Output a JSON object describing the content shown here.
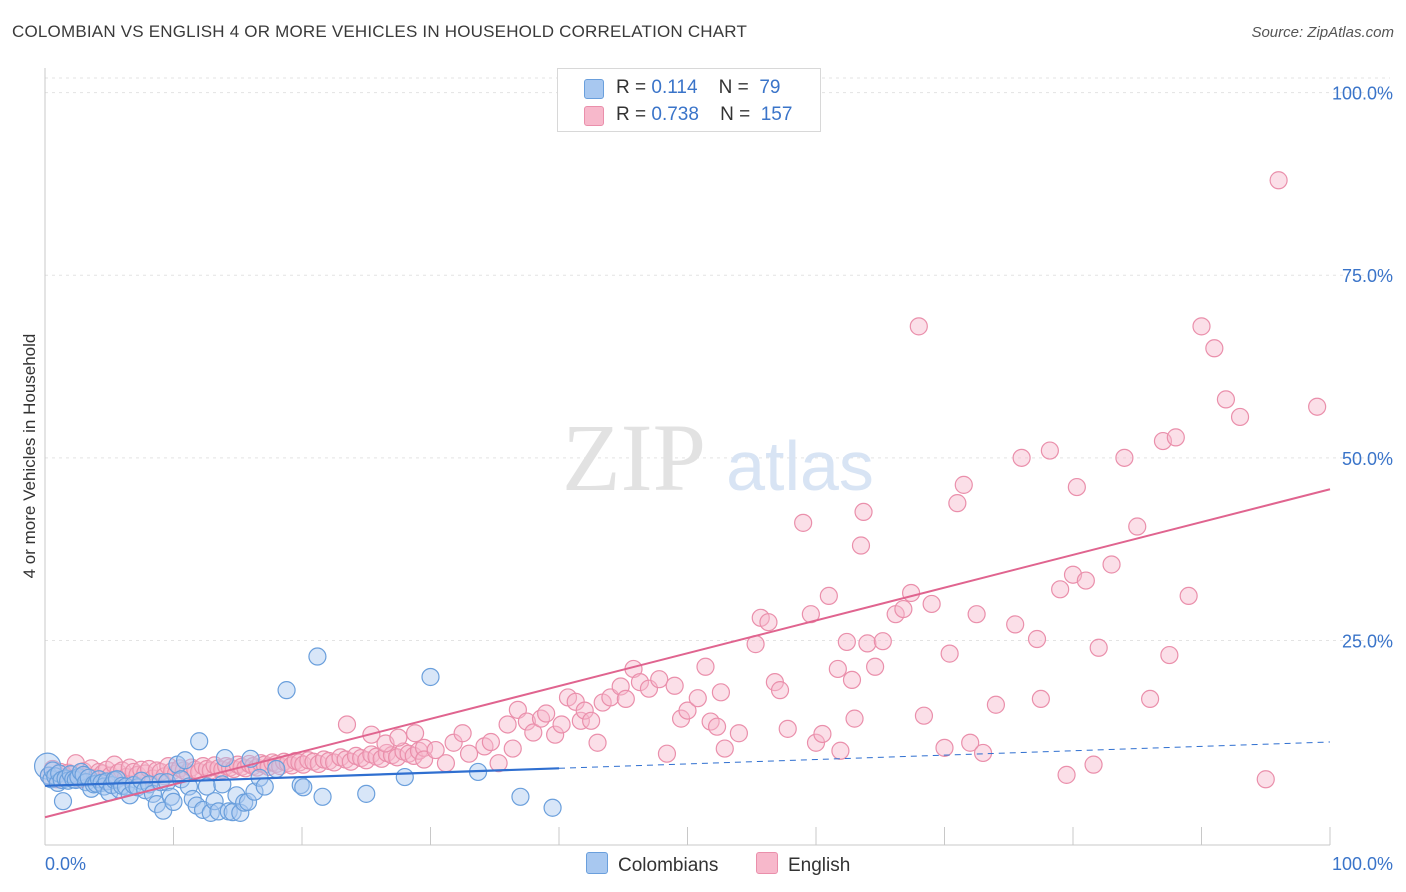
{
  "header": {
    "title": "COLOMBIAN VS ENGLISH 4 OR MORE VEHICLES IN HOUSEHOLD CORRELATION CHART",
    "source": "Source: ZipAtlas.com"
  },
  "watermark": {
    "zip": "ZIP",
    "atlas": "atlas"
  },
  "colors": {
    "colombians_fill": "#a8c8f0",
    "colombians_stroke": "#6a9fdc",
    "colombians_line": "#2f6fd0",
    "english_fill": "#f7b8cb",
    "english_stroke": "#ea8fab",
    "english_line": "#e0648f",
    "grid": "#e3e3e3",
    "tick_label": "#3a74c9"
  },
  "legend": {
    "rows": [
      {
        "r_label": "R =",
        "r_value": "0.114",
        "n_label": "N =",
        "n_value": "79"
      },
      {
        "r_label": "R =",
        "r_value": "0.738",
        "n_label": "N =",
        "n_value": "157"
      }
    ],
    "series_names": [
      "Colombians",
      "English"
    ]
  },
  "chart_data": {
    "type": "scatter",
    "title": "COLOMBIAN VS ENGLISH 4 OR MORE VEHICLES IN HOUSEHOLD CORRELATION CHART",
    "xlabel": "",
    "ylabel": "4 or more Vehicles in Household",
    "xlim": [
      0,
      100
    ],
    "ylim": [
      -3,
      102
    ],
    "x_tick_labels": [
      "0.0%",
      "100.0%"
    ],
    "y_ticks": [
      25,
      50,
      75,
      100
    ],
    "y_tick_labels": [
      "25.0%",
      "50.0%",
      "75.0%",
      "100.0%"
    ],
    "grid": true,
    "legend_position": "top-center",
    "series": [
      {
        "name": "Colombians",
        "R": 0.114,
        "N": 79,
        "trend": {
          "x0": 0,
          "y0": 5.1,
          "x1": 40,
          "y1": 7.5,
          "dashed_to_x": 100,
          "dashed_to_y": 11.1
        },
        "points": [
          [
            0.2,
            7.8
          ],
          [
            0.3,
            6.5
          ],
          [
            0.5,
            6.0
          ],
          [
            0.6,
            7.2
          ],
          [
            0.8,
            6.4
          ],
          [
            1.0,
            5.5
          ],
          [
            1.1,
            6.8
          ],
          [
            1.3,
            5.9
          ],
          [
            1.4,
            3.0
          ],
          [
            1.6,
            6.1
          ],
          [
            1.8,
            5.8
          ],
          [
            2.0,
            6.7
          ],
          [
            2.2,
            6.0
          ],
          [
            2.4,
            5.9
          ],
          [
            2.6,
            6.3
          ],
          [
            2.8,
            7.0
          ],
          [
            3.0,
            6.6
          ],
          [
            3.2,
            5.6
          ],
          [
            3.4,
            6.2
          ],
          [
            3.6,
            4.7
          ],
          [
            3.8,
            5.3
          ],
          [
            4.0,
            5.4
          ],
          [
            4.2,
            6.0
          ],
          [
            4.4,
            5.5
          ],
          [
            4.6,
            5.0
          ],
          [
            4.8,
            5.7
          ],
          [
            5.0,
            4.2
          ],
          [
            5.2,
            5.2
          ],
          [
            5.4,
            5.9
          ],
          [
            5.6,
            6.0
          ],
          [
            5.8,
            4.6
          ],
          [
            6.0,
            5.1
          ],
          [
            6.3,
            5.0
          ],
          [
            6.6,
            3.8
          ],
          [
            6.9,
            5.2
          ],
          [
            7.2,
            4.9
          ],
          [
            7.5,
            5.8
          ],
          [
            7.8,
            4.5
          ],
          [
            8.1,
            5.3
          ],
          [
            8.4,
            4.0
          ],
          [
            8.7,
            2.6
          ],
          [
            9.0,
            5.6
          ],
          [
            9.2,
            1.7
          ],
          [
            9.5,
            5.6
          ],
          [
            9.8,
            3.6
          ],
          [
            10.0,
            2.9
          ],
          [
            10.3,
            8.0
          ],
          [
            10.6,
            6.0
          ],
          [
            10.9,
            8.6
          ],
          [
            11.2,
            5.0
          ],
          [
            11.5,
            3.3
          ],
          [
            11.8,
            2.4
          ],
          [
            12.0,
            11.2
          ],
          [
            12.3,
            1.8
          ],
          [
            12.6,
            5.0
          ],
          [
            12.9,
            1.4
          ],
          [
            13.2,
            3.0
          ],
          [
            13.5,
            1.6
          ],
          [
            13.8,
            5.3
          ],
          [
            14.0,
            8.9
          ],
          [
            14.3,
            1.6
          ],
          [
            14.6,
            1.5
          ],
          [
            14.9,
            3.8
          ],
          [
            15.2,
            1.4
          ],
          [
            15.5,
            2.8
          ],
          [
            15.8,
            2.9
          ],
          [
            16.0,
            8.8
          ],
          [
            16.3,
            4.3
          ],
          [
            16.7,
            6.2
          ],
          [
            17.1,
            5.0
          ],
          [
            18.0,
            7.4
          ],
          [
            18.8,
            18.2
          ],
          [
            19.9,
            5.2
          ],
          [
            20.1,
            4.9
          ],
          [
            21.2,
            22.8
          ],
          [
            21.6,
            3.6
          ],
          [
            25.0,
            4.0
          ],
          [
            28.0,
            6.3
          ],
          [
            30.0,
            20.0
          ],
          [
            33.7,
            7.0
          ],
          [
            37.0,
            3.6
          ],
          [
            39.5,
            2.1
          ]
        ]
      },
      {
        "name": "English",
        "R": 0.738,
        "N": 157,
        "trend": {
          "x0": 0,
          "y0": 0.8,
          "x1": 100,
          "y1": 45.7
        },
        "points": [
          [
            0.3,
            6.5
          ],
          [
            0.6,
            7.4
          ],
          [
            0.9,
            6.0
          ],
          [
            1.2,
            7.0
          ],
          [
            1.5,
            6.3
          ],
          [
            1.8,
            6.9
          ],
          [
            2.1,
            6.6
          ],
          [
            2.4,
            8.2
          ],
          [
            2.7,
            6.0
          ],
          [
            3.0,
            7.1
          ],
          [
            3.3,
            6.4
          ],
          [
            3.6,
            7.5
          ],
          [
            3.9,
            6.2
          ],
          [
            4.2,
            7.0
          ],
          [
            4.5,
            6.8
          ],
          [
            4.8,
            7.3
          ],
          [
            5.1,
            6.5
          ],
          [
            5.4,
            8.0
          ],
          [
            5.7,
            6.9
          ],
          [
            6.0,
            7.2
          ],
          [
            6.3,
            6.3
          ],
          [
            6.6,
            7.6
          ],
          [
            6.9,
            7.0
          ],
          [
            7.2,
            6.6
          ],
          [
            7.5,
            7.3
          ],
          [
            7.8,
            6.8
          ],
          [
            8.1,
            7.4
          ],
          [
            8.4,
            6.1
          ],
          [
            8.7,
            7.2
          ],
          [
            9.0,
            7.0
          ],
          [
            9.3,
            6.4
          ],
          [
            9.6,
            7.8
          ],
          [
            9.9,
            7.1
          ],
          [
            10.2,
            6.8
          ],
          [
            10.5,
            7.5
          ],
          [
            10.8,
            7.2
          ],
          [
            11.1,
            6.9
          ],
          [
            11.4,
            7.6
          ],
          [
            11.7,
            7.3
          ],
          [
            12.0,
            7.0
          ],
          [
            12.3,
            7.8
          ],
          [
            12.6,
            7.4
          ],
          [
            12.9,
            7.2
          ],
          [
            13.2,
            7.9
          ],
          [
            13.5,
            7.5
          ],
          [
            13.8,
            7.3
          ],
          [
            14.1,
            7.8
          ],
          [
            14.4,
            7.6
          ],
          [
            14.7,
            7.4
          ],
          [
            15.0,
            8.0
          ],
          [
            15.3,
            7.7
          ],
          [
            15.6,
            7.5
          ],
          [
            15.9,
            8.1
          ],
          [
            16.2,
            7.8
          ],
          [
            16.5,
            7.6
          ],
          [
            16.8,
            8.2
          ],
          [
            17.1,
            8.0
          ],
          [
            17.4,
            7.7
          ],
          [
            17.7,
            8.3
          ],
          [
            18.0,
            8.1
          ],
          [
            18.3,
            7.8
          ],
          [
            18.6,
            8.4
          ],
          [
            18.9,
            8.2
          ],
          [
            19.2,
            7.9
          ],
          [
            19.5,
            8.5
          ],
          [
            19.8,
            8.3
          ],
          [
            20.1,
            8.0
          ],
          [
            20.5,
            8.6
          ],
          [
            20.9,
            8.4
          ],
          [
            21.3,
            8.1
          ],
          [
            21.7,
            8.7
          ],
          [
            22.1,
            8.5
          ],
          [
            22.5,
            8.3
          ],
          [
            23.0,
            9.0
          ],
          [
            23.4,
            8.7
          ],
          [
            23.8,
            8.4
          ],
          [
            24.2,
            9.2
          ],
          [
            24.6,
            8.9
          ],
          [
            25.0,
            8.6
          ],
          [
            25.4,
            9.4
          ],
          [
            25.8,
            9.1
          ],
          [
            26.2,
            8.8
          ],
          [
            26.6,
            9.6
          ],
          [
            27.0,
            9.3
          ],
          [
            27.4,
            9.0
          ],
          [
            27.9,
            9.8
          ],
          [
            28.3,
            9.5
          ],
          [
            28.7,
            9.2
          ],
          [
            29.1,
            9.9
          ],
          [
            29.5,
            10.3
          ],
          [
            23.5,
            13.5
          ],
          [
            25.4,
            12.1
          ],
          [
            26.5,
            10.9
          ],
          [
            27.5,
            11.7
          ],
          [
            28.8,
            12.3
          ],
          [
            29.5,
            8.7
          ],
          [
            30.4,
            10.0
          ],
          [
            31.2,
            8.2
          ],
          [
            31.8,
            11.0
          ],
          [
            32.5,
            12.3
          ],
          [
            33.0,
            9.5
          ],
          [
            34.2,
            10.5
          ],
          [
            34.7,
            11.1
          ],
          [
            35.3,
            8.2
          ],
          [
            36.0,
            13.5
          ],
          [
            36.4,
            10.2
          ],
          [
            36.8,
            15.5
          ],
          [
            37.5,
            13.9
          ],
          [
            38.0,
            12.4
          ],
          [
            38.6,
            14.3
          ],
          [
            39.0,
            15.0
          ],
          [
            39.7,
            12.1
          ],
          [
            40.2,
            13.5
          ],
          [
            40.7,
            17.2
          ],
          [
            41.3,
            16.6
          ],
          [
            41.7,
            14.0
          ],
          [
            42.0,
            15.4
          ],
          [
            42.5,
            14.0
          ],
          [
            43.0,
            11.0
          ],
          [
            43.4,
            16.5
          ],
          [
            44.0,
            17.2
          ],
          [
            44.8,
            18.7
          ],
          [
            45.2,
            17.0
          ],
          [
            45.8,
            21.1
          ],
          [
            46.3,
            19.3
          ],
          [
            47.0,
            18.4
          ],
          [
            47.8,
            19.7
          ],
          [
            48.4,
            9.5
          ],
          [
            49.0,
            18.8
          ],
          [
            49.5,
            14.3
          ],
          [
            50.0,
            15.4
          ],
          [
            50.8,
            17.1
          ],
          [
            51.4,
            21.4
          ],
          [
            51.8,
            13.9
          ],
          [
            52.3,
            13.2
          ],
          [
            52.6,
            17.9
          ],
          [
            52.9,
            10.2
          ],
          [
            54.0,
            12.3
          ],
          [
            55.3,
            24.5
          ],
          [
            55.7,
            28.1
          ],
          [
            56.3,
            27.5
          ],
          [
            56.8,
            19.3
          ],
          [
            57.2,
            18.2
          ],
          [
            57.8,
            12.9
          ],
          [
            59.0,
            41.1
          ],
          [
            59.6,
            28.6
          ],
          [
            60.0,
            11.0
          ],
          [
            60.5,
            12.2
          ],
          [
            61.0,
            31.1
          ],
          [
            61.7,
            21.1
          ],
          [
            61.9,
            9.9
          ],
          [
            62.4,
            24.8
          ],
          [
            62.8,
            19.6
          ],
          [
            63.0,
            14.3
          ],
          [
            63.5,
            38.0
          ],
          [
            63.7,
            42.6
          ],
          [
            64.0,
            24.6
          ],
          [
            64.6,
            21.4
          ],
          [
            65.2,
            24.9
          ],
          [
            66.2,
            28.6
          ],
          [
            66.8,
            29.3
          ],
          [
            67.4,
            31.5
          ],
          [
            68.0,
            68.0
          ],
          [
            68.4,
            14.7
          ],
          [
            69.0,
            30.0
          ],
          [
            70.0,
            10.3
          ],
          [
            70.4,
            23.2
          ],
          [
            71.0,
            43.8
          ],
          [
            71.5,
            46.3
          ],
          [
            72.0,
            11.0
          ],
          [
            72.5,
            28.6
          ],
          [
            73.0,
            9.6
          ],
          [
            74.0,
            16.2
          ],
          [
            75.5,
            27.2
          ],
          [
            76.0,
            50.0
          ],
          [
            77.2,
            25.2
          ],
          [
            77.5,
            17.0
          ],
          [
            78.2,
            51.0
          ],
          [
            79.0,
            32.0
          ],
          [
            79.5,
            6.6
          ],
          [
            80.0,
            34.0
          ],
          [
            80.3,
            46.0
          ],
          [
            81.0,
            33.2
          ],
          [
            81.6,
            8.0
          ],
          [
            82.0,
            24.0
          ],
          [
            83.0,
            35.4
          ],
          [
            84.0,
            50.0
          ],
          [
            85.0,
            40.6
          ],
          [
            86.0,
            17.0
          ],
          [
            87.0,
            52.3
          ],
          [
            87.5,
            23.0
          ],
          [
            88.0,
            52.8
          ],
          [
            89.0,
            31.1
          ],
          [
            90.0,
            68.0
          ],
          [
            91.0,
            65.0
          ],
          [
            91.9,
            58.0
          ],
          [
            93.0,
            55.6
          ],
          [
            95.0,
            6.0
          ],
          [
            96.0,
            88.0
          ],
          [
            99.0,
            57.0
          ]
        ]
      }
    ]
  }
}
